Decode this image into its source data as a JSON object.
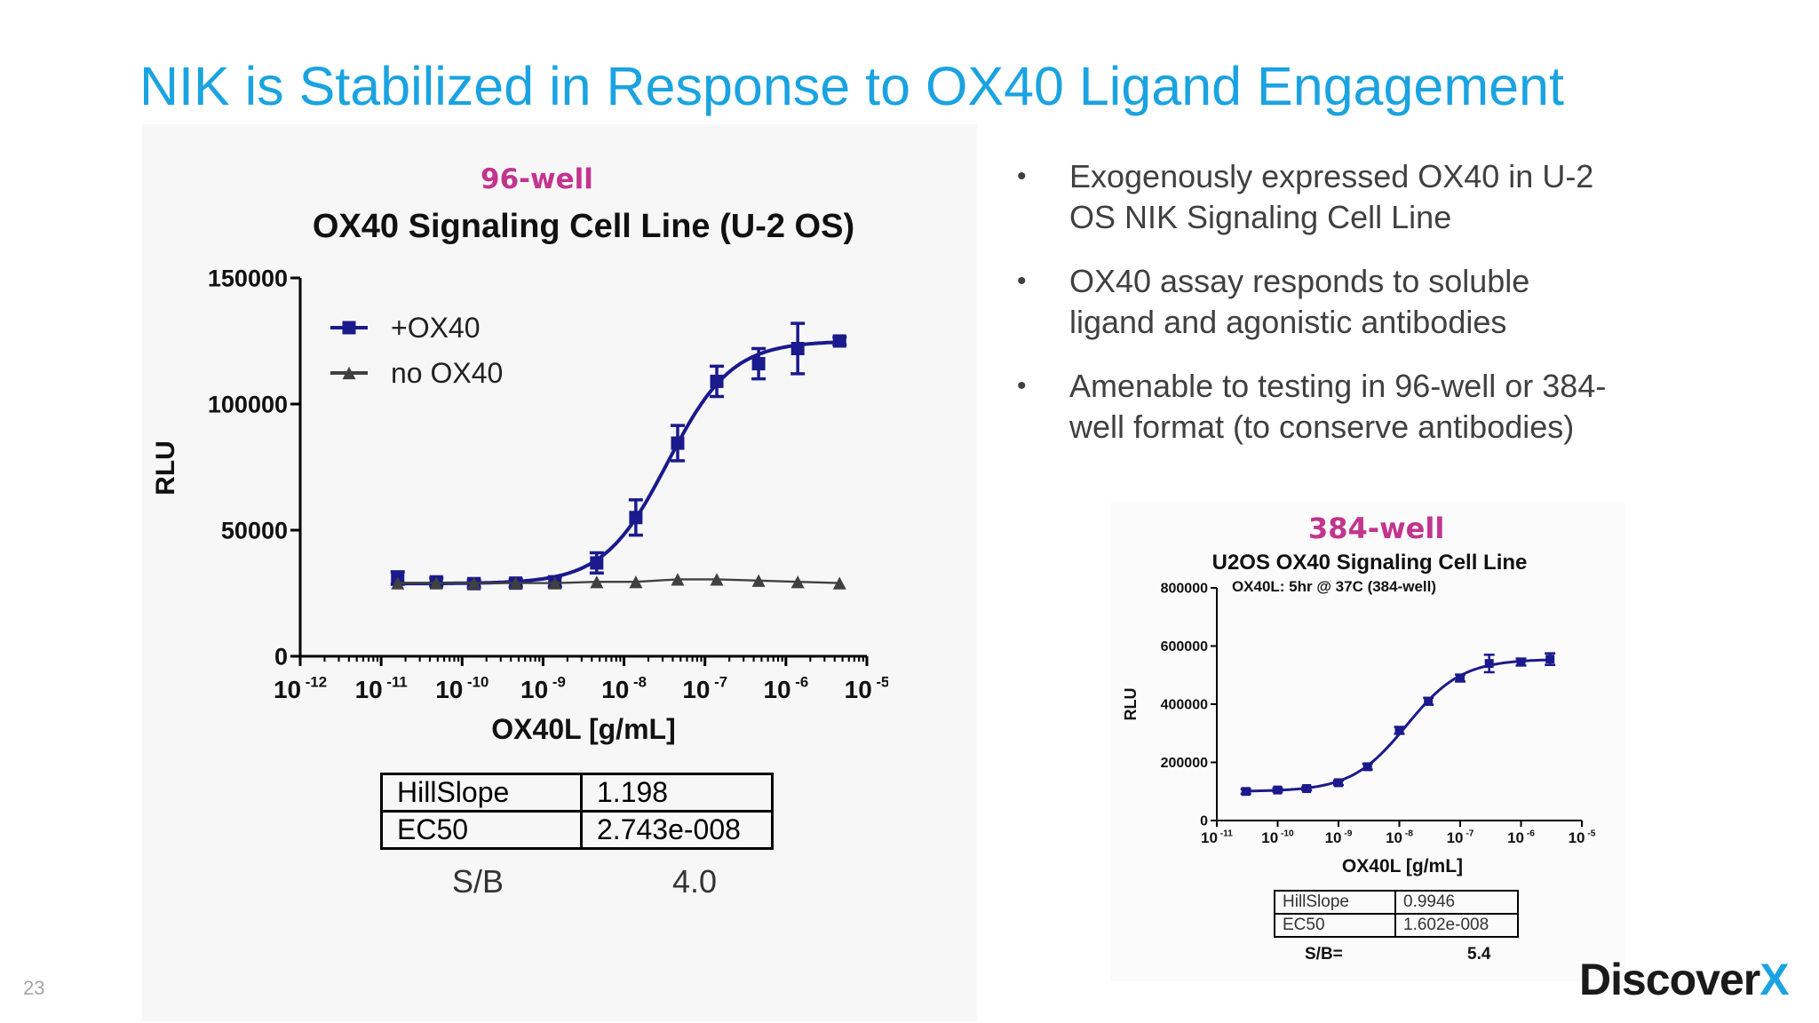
{
  "slide": {
    "title": "NIK is Stabilized in Response to OX40 Ligand Engagement",
    "page_number": "23",
    "logo_text": "Discover",
    "logo_accent": "X",
    "accent_color": "#1aa3e0"
  },
  "bullets": [
    "Exogenously expressed OX40 in U-2 OS NIK Signaling Cell Line",
    "OX40 assay responds to soluble ligand and agonistic antibodies",
    "Amenable to testing in 96-well or 384-well format (to conserve antibodies)"
  ],
  "bullet_symbol": "•",
  "left_figure": {
    "well_label": "96-well",
    "table": {
      "rows": [
        {
          "label": "HillSlope",
          "value": "1.198"
        },
        {
          "label": "EC50",
          "value": "2.743e-008"
        }
      ],
      "sb_label": "S/B",
      "sb_value": "4.0"
    }
  },
  "right_figure": {
    "well_label": "384-well",
    "table": {
      "rows": [
        {
          "label": "HillSlope",
          "value": "0.9946"
        },
        {
          "label": "EC50",
          "value": "1.602e-008"
        }
      ],
      "sb_label": "S/B=",
      "sb_value": "5.4"
    }
  },
  "chart_data": [
    {
      "type": "scatter",
      "title": "OX40 Signaling Cell Line (U-2 OS)",
      "xlabel": "OX40L [g/mL]",
      "ylabel": "RLU",
      "x_scale": "log",
      "xlim": [
        1e-12,
        1e-05
      ],
      "ylim": [
        0,
        150000
      ],
      "x_ticks": [
        "10^-12",
        "10^-11",
        "10^-10",
        "10^-9",
        "10^-8",
        "10^-7",
        "10^-6",
        "10^-5"
      ],
      "x_tick_labels": [
        {
          "base": "10",
          "exp": "-12"
        },
        {
          "base": "10",
          "exp": "-11"
        },
        {
          "base": "10",
          "exp": "-10"
        },
        {
          "base": "10",
          "exp": "-9"
        },
        {
          "base": "10",
          "exp": "-8"
        },
        {
          "base": "10",
          "exp": "-7"
        },
        {
          "base": "10",
          "exp": "-6"
        },
        {
          "base": "10",
          "exp": "-5"
        }
      ],
      "y_ticks": [
        "0",
        "50000",
        "100000",
        "150000"
      ],
      "legend_position": "top-left",
      "series": [
        {
          "name": "+OX40",
          "color": "#1a1a8c",
          "marker": "square",
          "fit": "sigmoidal",
          "x": [
            1.6e-11,
            4.8e-11,
            1.4e-10,
            4.6e-10,
            1.4e-09,
            4.6e-09,
            1.4e-08,
            4.6e-08,
            1.4e-07,
            4.6e-07,
            1.4e-06,
            4.6e-06
          ],
          "y": [
            31000,
            29500,
            28800,
            29000,
            29500,
            37000,
            55000,
            84500,
            109000,
            116000,
            122000,
            125000
          ],
          "err": [
            2500,
            1500,
            1500,
            1500,
            2000,
            4000,
            7000,
            7000,
            6000,
            6000,
            10000,
            1500
          ]
        },
        {
          "name": "no OX40",
          "color": "#404040",
          "marker": "triangle",
          "x": [
            1.6e-11,
            4.8e-11,
            1.4e-10,
            4.6e-10,
            1.4e-09,
            4.6e-09,
            1.4e-08,
            4.6e-08,
            1.4e-07,
            4.6e-07,
            1.4e-06,
            4.6e-06
          ],
          "y": [
            29000,
            29000,
            29000,
            29000,
            29000,
            29500,
            29500,
            30500,
            30500,
            30000,
            29500,
            29000
          ]
        }
      ]
    },
    {
      "type": "scatter",
      "title": "U2OS OX40 Signaling Cell Line",
      "subtitle": "OX40L: 5hr @ 37C (384-well)",
      "xlabel": "OX40L [g/mL]",
      "ylabel": "RLU",
      "x_scale": "log",
      "xlim": [
        1e-11,
        1e-05
      ],
      "ylim": [
        0,
        800000
      ],
      "x_tick_labels": [
        {
          "base": "10",
          "exp": "-11"
        },
        {
          "base": "10",
          "exp": "-10"
        },
        {
          "base": "10",
          "exp": "-9"
        },
        {
          "base": "10",
          "exp": "-8"
        },
        {
          "base": "10",
          "exp": "-7"
        },
        {
          "base": "10",
          "exp": "-6"
        },
        {
          "base": "10",
          "exp": "-5"
        }
      ],
      "y_ticks": [
        "0",
        "200000",
        "400000",
        "600000",
        "800000"
      ],
      "series": [
        {
          "color": "#1a1a8c",
          "marker": "square",
          "fit": "sigmoidal",
          "x": [
            3e-11,
            1e-10,
            3e-10,
            1e-09,
            3e-09,
            1e-08,
            3e-08,
            1e-07,
            3e-07,
            1e-06,
            3e-06
          ],
          "y": [
            100000,
            105000,
            110000,
            130000,
            185000,
            310000,
            410000,
            490000,
            540000,
            545000,
            555000
          ],
          "err": [
            8000,
            6000,
            6000,
            8000,
            10000,
            12000,
            12000,
            12000,
            30000,
            12000,
            20000
          ]
        }
      ]
    }
  ]
}
